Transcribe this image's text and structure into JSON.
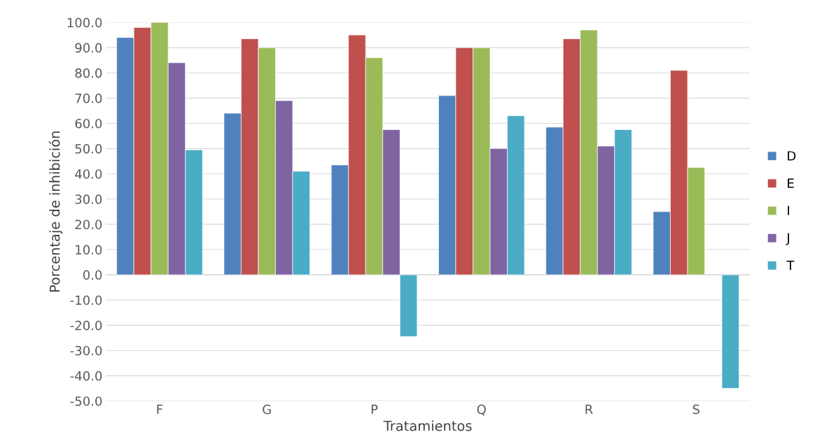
{
  "chart_data": {
    "type": "bar",
    "xlabel": "Tratamientos",
    "ylabel": "Porcentaje de inhibición",
    "categories": [
      "F",
      "G",
      "P",
      "Q",
      "R",
      "S"
    ],
    "series": [
      {
        "name": "D",
        "color": "#4f81bd",
        "values": [
          94,
          64,
          43.5,
          71,
          58.5,
          25
        ]
      },
      {
        "name": "E",
        "color": "#c0504d",
        "values": [
          98,
          93.5,
          95,
          90,
          93.5,
          81
        ]
      },
      {
        "name": "I",
        "color": "#9bbb59",
        "values": [
          100,
          90,
          86,
          90,
          97,
          42.5
        ]
      },
      {
        "name": "J",
        "color": "#8064a2",
        "values": [
          84,
          69,
          57.5,
          50,
          51,
          null
        ]
      },
      {
        "name": "T",
        "color": "#4bacc6",
        "values": [
          49.5,
          41,
          -24.5,
          63,
          57.5,
          -45
        ]
      }
    ],
    "ylim": [
      -50,
      100
    ],
    "yticks": [
      {
        "value": -50,
        "label": "-50.0"
      },
      {
        "value": -40,
        "label": "-40.0"
      },
      {
        "value": -30,
        "label": "-30.0"
      },
      {
        "value": -20,
        "label": "-20.0"
      },
      {
        "value": -10,
        "label": "-10.0"
      },
      {
        "value": 0,
        "label": "0.0"
      },
      {
        "value": 10,
        "label": "10.0"
      },
      {
        "value": 20,
        "label": "20.0"
      },
      {
        "value": 30,
        "label": "30.0"
      },
      {
        "value": 40,
        "label": "40.0"
      },
      {
        "value": 50,
        "label": "50.0"
      },
      {
        "value": 60,
        "label": "60.0"
      },
      {
        "value": 70,
        "label": "70.0"
      },
      {
        "value": 80,
        "label": "80.0"
      },
      {
        "value": 90,
        "label": "90.0"
      },
      {
        "value": 100,
        "label": "100.0"
      }
    ],
    "grid": "y",
    "legend": "right"
  }
}
